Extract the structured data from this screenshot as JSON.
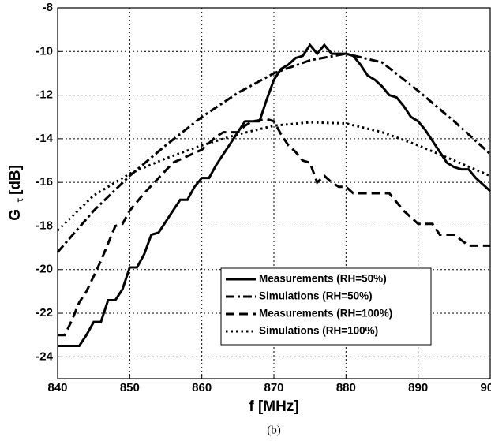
{
  "chart_data": {
    "type": "line",
    "xlabel": "f [MHz]",
    "ylabel": "G",
    "ylabel_sub": "τ",
    "ylabel_unit": "[dB]",
    "caption": "(b)",
    "xlim": [
      840,
      900
    ],
    "xticks": [
      840,
      850,
      860,
      870,
      880,
      890,
      900
    ],
    "ylim": [
      -25,
      -8
    ],
    "yticks": [
      -24,
      -22,
      -20,
      -18,
      -16,
      -14,
      -12,
      -10,
      -8
    ],
    "grid": true,
    "legend": "lower right",
    "series": [
      {
        "name": "Measurements (RH=50%)",
        "color": "#000000",
        "dash": "solid",
        "x": [
          840,
          843,
          844,
          845,
          846,
          847,
          848,
          849,
          850,
          851,
          852,
          853,
          854,
          855,
          856,
          857,
          858,
          859,
          860,
          861,
          862,
          863,
          864,
          865,
          866,
          867,
          868,
          869,
          870,
          871,
          872,
          873,
          874,
          875,
          876,
          877,
          878,
          879,
          880,
          881,
          882,
          883,
          884,
          885,
          886,
          887,
          888,
          889,
          890,
          891,
          892,
          893,
          894,
          895,
          896,
          897,
          898,
          899,
          900
        ],
        "values": [
          -23.5,
          -23.5,
          -23,
          -22.4,
          -22.4,
          -21.4,
          -21.4,
          -20.9,
          -19.9,
          -19.9,
          -19.3,
          -18.4,
          -18.3,
          -17.8,
          -17.3,
          -16.8,
          -16.8,
          -16.2,
          -15.8,
          -15.8,
          -15.2,
          -14.7,
          -14.2,
          -13.7,
          -13.2,
          -13.2,
          -13.2,
          -12.2,
          -11.3,
          -10.8,
          -10.6,
          -10.3,
          -10.2,
          -9.7,
          -10.1,
          -9.7,
          -10.1,
          -10.1,
          -10.1,
          -10.2,
          -10.6,
          -11.1,
          -11.3,
          -11.6,
          -12,
          -12.1,
          -12.5,
          -13,
          -13.2,
          -13.6,
          -14.1,
          -14.6,
          -15.1,
          -15.3,
          -15.4,
          -15.4,
          -15.8,
          -16.1,
          -16.4
        ]
      },
      {
        "name": "Simulations (RH=50%)",
        "color": "#000000",
        "dash": "dashdot",
        "x": [
          840,
          845,
          850,
          855,
          860,
          865,
          870,
          875,
          880,
          885,
          890,
          895,
          900
        ],
        "values": [
          -19.2,
          -17.3,
          -15.7,
          -14.3,
          -13,
          -11.9,
          -11,
          -10.4,
          -10.1,
          -10.5,
          -11.8,
          -13.2,
          -14.7
        ]
      },
      {
        "name": "Measurements (RH=100%)",
        "color": "#000000",
        "dash": "dashed",
        "x": [
          840,
          841,
          842,
          843,
          844,
          845,
          846,
          847,
          848,
          849,
          850,
          852,
          854,
          856,
          858,
          860,
          862,
          863,
          865,
          866,
          867,
          869,
          870,
          871,
          872,
          873,
          874,
          875,
          876,
          877,
          878,
          879,
          880,
          881,
          885,
          886,
          887,
          888,
          890,
          892,
          893,
          895,
          897,
          900
        ],
        "values": [
          -23,
          -23,
          -22.3,
          -21.5,
          -21,
          -20.3,
          -19.6,
          -18.8,
          -18,
          -17.9,
          -17.3,
          -16.5,
          -15.8,
          -15.1,
          -14.8,
          -14.5,
          -13.9,
          -13.7,
          -13.7,
          -13.4,
          -13.2,
          -13.1,
          -13.2,
          -13.8,
          -14.3,
          -14.6,
          -15,
          -15.1,
          -16,
          -15.7,
          -16,
          -16.2,
          -16.2,
          -16.5,
          -16.5,
          -16.5,
          -16.9,
          -17.3,
          -17.9,
          -17.9,
          -18.4,
          -18.4,
          -18.9,
          -18.9
        ]
      },
      {
        "name": "Simulations (RH=100%)",
        "color": "#000000",
        "dash": "dotted",
        "x": [
          840,
          845,
          850,
          855,
          860,
          865,
          870,
          875,
          880,
          885,
          890,
          895,
          900
        ],
        "values": [
          -18.2,
          -16.6,
          -15.6,
          -14.9,
          -14.3,
          -13.8,
          -13.4,
          -13.25,
          -13.3,
          -13.7,
          -14.3,
          -15,
          -15.7
        ]
      }
    ]
  }
}
